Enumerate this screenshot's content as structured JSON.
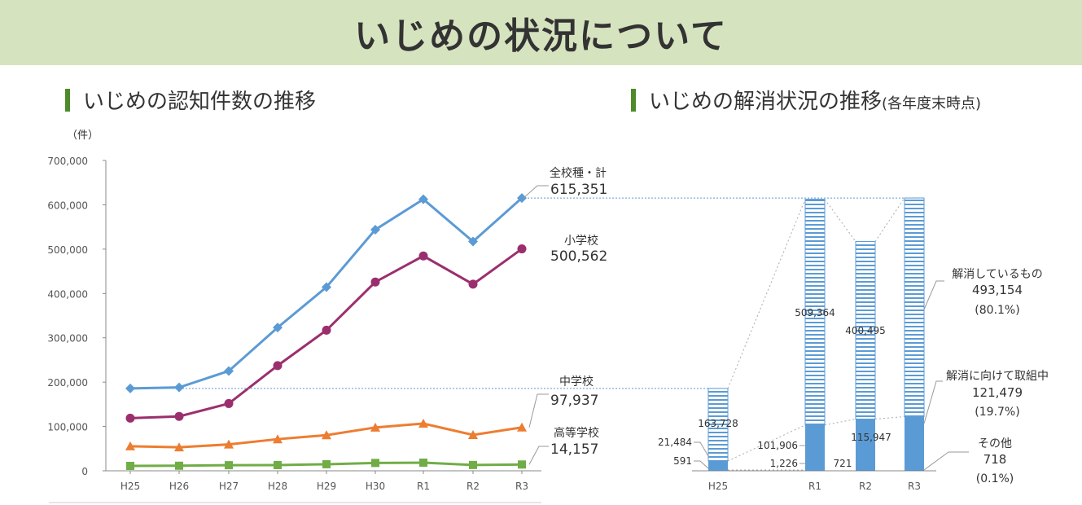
{
  "page": {
    "title": "いじめの状況について"
  },
  "left_section": {
    "title": "いじめの認知件数の推移"
  },
  "right_section": {
    "title": "いじめの解消状況の推移",
    "subtitle": "(各年度末時点)"
  },
  "colors": {
    "all": "#5b9bd5",
    "elementary": "#9b2f6e",
    "junior_high": "#ed7d31",
    "high": "#70ad47",
    "resolved_stripe": "#5b9bd5",
    "in_progress": "#5b9bd5",
    "banner": "#d6e3bf",
    "section_bar": "#4e8a2a"
  },
  "chart_data": [
    {
      "type": "line",
      "unit_label": "（件）",
      "categories": [
        "H25",
        "H26",
        "H27",
        "H28",
        "H29",
        "H30",
        "R1",
        "R2",
        "R3"
      ],
      "ylim": [
        0,
        700000
      ],
      "yticks": [
        "0",
        "100,000",
        "200,000",
        "300,000",
        "400,000",
        "500,000",
        "600,000",
        "700,000"
      ],
      "grid": false,
      "series": [
        {
          "name": "全校種・計",
          "end_label": "615,351",
          "marker": "diamond",
          "color": "#5b9bd5",
          "values": [
            185803,
            188072,
            225132,
            323143,
            414378,
            543933,
            612496,
            517163,
            615351
          ]
        },
        {
          "name": "小学校",
          "end_label": "500,562",
          "marker": "circle",
          "color": "#9b2f6e",
          "values": [
            118748,
            122734,
            151692,
            237256,
            317121,
            425844,
            484545,
            420897,
            500562
          ]
        },
        {
          "name": "中学校",
          "end_label": "97,937",
          "marker": "triangle",
          "color": "#ed7d31",
          "values": [
            55248,
            52971,
            59502,
            71309,
            80424,
            97704,
            106524,
            80877,
            97937
          ]
        },
        {
          "name": "高等学校",
          "end_label": "14,157",
          "marker": "square",
          "color": "#70ad47",
          "values": [
            11039,
            11404,
            12664,
            12874,
            14789,
            17709,
            18352,
            13126,
            14157
          ]
        }
      ]
    },
    {
      "type": "bar",
      "stacked": true,
      "categories": [
        "H25",
        "R1",
        "R2",
        "R3"
      ],
      "series": [
        {
          "name": "解消しているもの",
          "values": [
            163728,
            509364,
            400495,
            493154
          ],
          "labels": [
            "163,728",
            "509,364",
            "400,495",
            ""
          ]
        },
        {
          "name": "解消に向けて取組中",
          "values": [
            21484,
            101906,
            115947,
            121479
          ],
          "labels": [
            "21,484",
            "101,906",
            "115,947",
            ""
          ]
        },
        {
          "name": "その他",
          "values": [
            591,
            1226,
            721,
            718
          ],
          "labels": [
            "591",
            "1,226",
            "721",
            ""
          ]
        }
      ],
      "callouts": [
        {
          "name": "解消しているもの",
          "value": "493,154",
          "pct": "(80.1%)"
        },
        {
          "name": "解消に向けて取組中",
          "value": "121,479",
          "pct": "(19.7%)"
        },
        {
          "name": "その他",
          "value": "718",
          "pct": "(0.1%)"
        }
      ]
    }
  ]
}
